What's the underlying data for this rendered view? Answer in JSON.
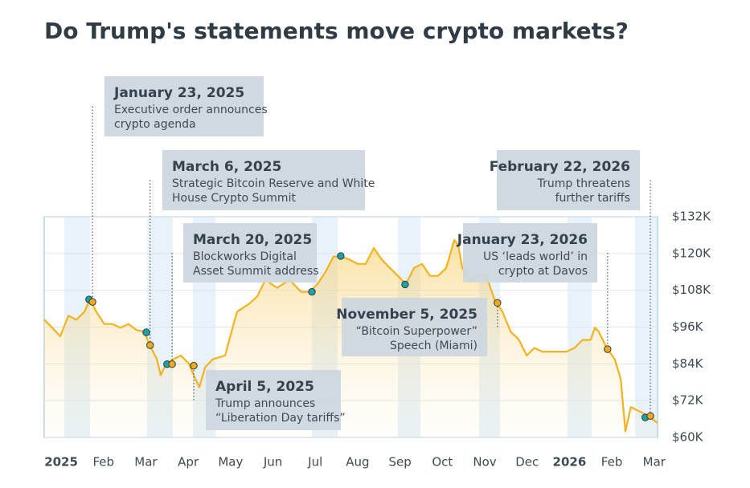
{
  "chart_data": {
    "type": "line",
    "title": "Do Trump's statements move crypto markets?",
    "xlim": [
      -0.4,
      14.08
    ],
    "xticks": [
      {
        "value": 0,
        "label": "2025"
      },
      {
        "value": 1,
        "label": "Feb"
      },
      {
        "value": 2,
        "label": "Mar"
      },
      {
        "value": 3,
        "label": "Apr"
      },
      {
        "value": 4,
        "label": "May"
      },
      {
        "value": 5,
        "label": "Jun"
      },
      {
        "value": 6,
        "label": "Jul"
      },
      {
        "value": 7,
        "label": "Aug"
      },
      {
        "value": 8,
        "label": "Sep"
      },
      {
        "value": 9,
        "label": "Oct"
      },
      {
        "value": 10,
        "label": "Nov"
      },
      {
        "value": 11,
        "label": "Dec"
      },
      {
        "value": 12,
        "label": "2026"
      },
      {
        "value": 13,
        "label": "Feb"
      },
      {
        "value": 14,
        "label": "Mar"
      }
    ],
    "ylim": [
      60,
      132
    ],
    "yticks": [
      {
        "value": 132,
        "label": "$132K"
      },
      {
        "value": 120,
        "label": "$120K"
      },
      {
        "value": 108,
        "label": "$108K"
      },
      {
        "value": 96,
        "label": "$96K"
      },
      {
        "value": 84,
        "label": "$84K"
      },
      {
        "value": 72,
        "label": "$72K"
      },
      {
        "value": 60,
        "label": "$60K"
      }
    ],
    "grid": true,
    "x": [
      -0.4,
      -0.21,
      -0.02,
      0.17,
      0.36,
      0.55,
      0.68,
      0.83,
      1.02,
      1.21,
      1.4,
      1.59,
      1.78,
      1.97,
      2.07,
      2.26,
      2.35,
      2.48,
      2.64,
      2.83,
      3.02,
      3.17,
      3.26,
      3.4,
      3.58,
      3.87,
      4.15,
      4.44,
      4.63,
      4.82,
      5.1,
      5.39,
      5.67,
      5.86,
      6.05,
      6.24,
      6.43,
      6.62,
      6.81,
      7.0,
      7.19,
      7.38,
      7.57,
      7.76,
      7.95,
      8.14,
      8.33,
      8.52,
      8.71,
      8.9,
      9.09,
      9.28,
      9.37,
      9.47,
      9.66,
      9.85,
      10.04,
      10.23,
      10.42,
      10.61,
      10.8,
      10.99,
      11.17,
      11.36,
      11.65,
      11.93,
      12.12,
      12.31,
      12.5,
      12.6,
      12.69,
      12.88,
      13.07,
      13.21,
      13.32,
      13.45,
      13.64,
      13.83,
      13.96,
      14.08
    ],
    "series": [
      {
        "color": "#f5b21c",
        "values": [
          98.4,
          95.8,
          93,
          99.7,
          98.4,
          101,
          105,
          101,
          97,
          97,
          95.8,
          97,
          95,
          94.5,
          90.6,
          85.5,
          80.3,
          84,
          85.5,
          86.7,
          84,
          79,
          76.4,
          82.9,
          85.5,
          86.7,
          101,
          103.6,
          106,
          111.4,
          108.8,
          111.4,
          107.5,
          107.5,
          110,
          114,
          119,
          119,
          118,
          116.6,
          116.6,
          121.8,
          118,
          115.3,
          112.7,
          110,
          115.3,
          116.6,
          112.7,
          112.7,
          115.3,
          124.4,
          123,
          115.3,
          111.4,
          112.7,
          112.7,
          105,
          101,
          94.5,
          92,
          86.7,
          89.2,
          88,
          88,
          88,
          89.2,
          91.8,
          91.8,
          95.8,
          94.5,
          89.2,
          85.5,
          79,
          62,
          69.9,
          68.6,
          67.3,
          66,
          64.7
        ]
      }
    ],
    "markers": [
      {
        "color": "#1ba3a3",
        "x": [
          0.66,
          2.01,
          2.5,
          5.92,
          6.6,
          8.12,
          13.79
        ],
        "y": [
          105,
          94.3,
          83.9,
          107.5,
          119.2,
          109.9,
          66.5
        ]
      },
      {
        "color": "#f0a81e",
        "x": [
          0.74,
          2.1,
          2.62,
          3.13,
          10.3,
          12.9,
          13.91
        ],
        "y": [
          104.2,
          90.1,
          83.9,
          83.4,
          103.9,
          88.8,
          67.0
        ]
      }
    ],
    "annotations": [
      {
        "date": "January 23, 2025",
        "lines": [
          "Executive order announces",
          "crypto agenda"
        ]
      },
      {
        "date": "March 6, 2025",
        "lines": [
          "Strategic Bitcoin Reserve and White",
          "House Crypto Summit"
        ]
      },
      {
        "date": "March 20, 2025",
        "lines": [
          "Blockworks Digital",
          "Asset Summit address"
        ]
      },
      {
        "date": "April 5, 2025",
        "lines": [
          "Trump announces",
          "“Liberation Day tariffs”"
        ]
      },
      {
        "date": "November 5, 2025",
        "lines": [
          "“Bitcoin Superpower”",
          "Speech (Miami)"
        ]
      },
      {
        "date": "January 23, 2026",
        "lines": [
          "US ‘leads world’ in",
          "crypto at Davos"
        ]
      },
      {
        "date": "February 22, 2026",
        "lines": [
          "Trump threatens",
          "further tariffs"
        ]
      }
    ]
  }
}
